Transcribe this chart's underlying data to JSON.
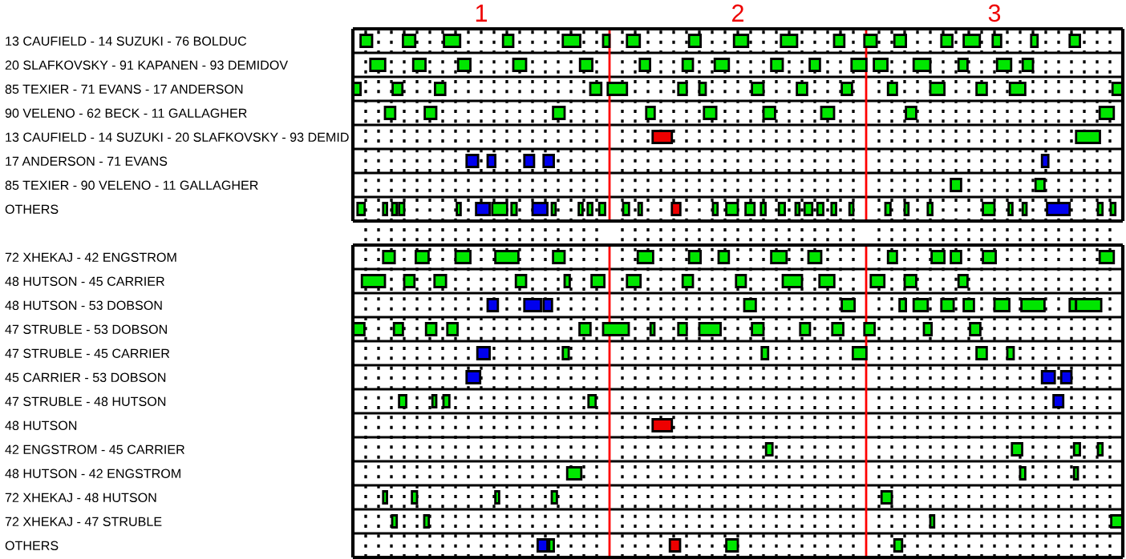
{
  "chart_data": {
    "type": "bar",
    "orientation": "horizontal",
    "grid": "x",
    "xlim": [
      0.5,
      3.5
    ],
    "xticks": [
      {
        "value": 0.55,
        "label": null
      },
      {
        "value": 0.6,
        "label": null
      },
      {
        "value": 0.65,
        "label": null
      },
      {
        "value": 0.7,
        "label": null
      },
      {
        "value": 0.75,
        "label": null
      },
      {
        "value": 0.8,
        "label": null
      },
      {
        "value": 0.85,
        "label": null
      },
      {
        "value": 0.9,
        "label": null
      },
      {
        "value": 0.95,
        "label": null
      },
      1,
      {
        "value": 1.05,
        "label": null
      },
      {
        "value": 1.1,
        "label": null
      },
      {
        "value": 1.15,
        "label": null
      },
      {
        "value": 1.2,
        "label": null
      },
      {
        "value": 1.25,
        "label": null
      },
      {
        "value": 1.3,
        "label": null
      },
      {
        "value": 1.35,
        "label": null
      },
      {
        "value": 1.4,
        "label": null
      },
      {
        "value": 1.45,
        "label": null
      },
      {
        "value": 1.55,
        "label": null
      },
      {
        "value": 1.6,
        "label": null
      },
      {
        "value": 1.65,
        "label": null
      },
      {
        "value": 1.7,
        "label": null
      },
      {
        "value": 1.75,
        "label": null
      },
      {
        "value": 1.8,
        "label": null
      },
      {
        "value": 1.85,
        "label": null
      },
      {
        "value": 1.9,
        "label": null
      },
      {
        "value": 1.95,
        "label": null
      },
      2,
      {
        "value": 2.05,
        "label": null
      },
      {
        "value": 2.1,
        "label": null
      },
      {
        "value": 2.15,
        "label": null
      },
      {
        "value": 2.2,
        "label": null
      },
      {
        "value": 2.25,
        "label": null
      },
      {
        "value": 2.3,
        "label": null
      },
      {
        "value": 2.35,
        "label": null
      },
      {
        "value": 2.4,
        "label": null
      },
      {
        "value": 2.45,
        "label": null
      },
      {
        "value": 2.55,
        "label": null
      },
      {
        "value": 2.6,
        "label": null
      },
      {
        "value": 2.65,
        "label": null
      },
      {
        "value": 2.7,
        "label": null
      },
      {
        "value": 2.75,
        "label": null
      },
      {
        "value": 2.8,
        "label": null
      },
      {
        "value": 2.85,
        "label": null
      },
      {
        "value": 2.9,
        "label": null
      },
      {
        "value": 2.95,
        "label": null
      },
      3,
      {
        "value": 3.05,
        "label": null
      },
      {
        "value": 3.1,
        "label": null
      },
      {
        "value": 3.15,
        "label": null
      },
      {
        "value": 3.2,
        "label": null
      },
      {
        "value": 3.25,
        "label": null
      },
      {
        "value": 3.3,
        "label": null
      },
      {
        "value": 3.35,
        "label": null
      },
      {
        "value": 3.4,
        "label": null
      },
      {
        "value": 3.45,
        "label": null
      }
    ],
    "ref_lines": [
      {
        "axis": "x",
        "value": 1.5,
        "color": "#ff0000"
      },
      {
        "axis": "x",
        "value": 2.5,
        "color": "#ff0000"
      }
    ],
    "categories": [
      "13 CAUFIELD - 14 SUZUKI - 76 BOLDUC",
      "20 SLAFKOVSKY - 91 KAPANEN - 93 DEMIDOV",
      "85 TEXIER - 71 EVANS - 17 ANDERSON",
      "90 VELENO - 62 BECK - 11 GALLAGHER",
      "13 CAUFIELD - 14 SUZUKI - 20 SLAFKOVSKY - 93 DEMID",
      "17 ANDERSON - 71 EVANS",
      "85 TEXIER - 90 VELENO - 11 GALLAGHER",
      "OTHERS",
      null,
      "72 XHEKAJ - 42 ENGSTROM",
      "48 HUTSON - 45 CARRIER",
      "48 HUTSON - 53 DOBSON",
      "47 STRUBLE - 53 DOBSON",
      "47 STRUBLE - 45 CARRIER",
      "45 CARRIER - 53 DOBSON",
      "47 STRUBLE - 48 HUTSON",
      "48 HUTSON",
      "42 ENGSTROM - 45 CARRIER",
      "48 HUTSON - 42 ENGSTROM",
      "72 XHEKAJ - 48 HUTSON",
      "72 XHEKAJ - 47 STRUBLE",
      "OTHERS"
    ],
    "series": [
      {
        "color": "#00e600",
        "base": [
          0.53,
          0.568,
          0.5,
          0.625,
          3.318,
          null,
          2.83,
          0.518,
          null,
          0.618,
          0.535,
          2.025,
          0.5,
          1.318,
          null,
          0.68,
          null,
          2.11,
          1.335,
          0.618,
          0.653,
          1.265
        ],
        "values": [
          0.045,
          0.058,
          0.03,
          0.04,
          0.093,
          null,
          0.04,
          0.028,
          null,
          0.045,
          0.09,
          0.045,
          0.045,
          0.023,
          null,
          0.028,
          null,
          0.025,
          0.055,
          0.015,
          0.018,
          0.018
        ]
      },
      {
        "color": "#00e600",
        "base": [
          0.695,
          0.735,
          0.655,
          0.78,
          null,
          null,
          3.16,
          0.618,
          null,
          0.745,
          0.7,
          2.405,
          0.66,
          2.093,
          null,
          0.81,
          null,
          3.068,
          3.1,
          0.73,
          0.778,
          1.955
        ],
        "values": [
          0.048,
          0.048,
          0.038,
          0.045,
          null,
          null,
          0.035,
          0.015,
          null,
          0.05,
          0.04,
          0.05,
          0.035,
          0.025,
          null,
          0.015,
          null,
          0.04,
          0.02,
          0.02,
          0.018,
          0.045
        ]
      },
      {
        "color": "#00e600",
        "base": [
          0.855,
          0.91,
          0.82,
          1.28,
          null,
          null,
          null,
          0.653,
          null,
          0.9,
          0.818,
          2.63,
          0.785,
          2.448,
          null,
          0.853,
          null,
          3.31,
          3.31,
          1.055,
          2.75,
          2.61
        ],
        "values": [
          0.063,
          0.048,
          0.04,
          0.045,
          null,
          null,
          null,
          0.018,
          null,
          0.058,
          0.045,
          0.025,
          0.04,
          0.053,
          null,
          0.023,
          null,
          0.023,
          0.015,
          0.015,
          0.015,
          0.03
        ]
      },
      {
        "color": "#00e600",
        "base": [
          1.085,
          1.125,
          1.425,
          1.643,
          null,
          null,
          null,
          0.68,
          null,
          1.055,
          1.135,
          2.685,
          0.868,
          2.93,
          null,
          1.418,
          null,
          3.403,
          null,
          1.275,
          3.455,
          null
        ],
        "values": [
          0.04,
          0.05,
          0.043,
          0.033,
          null,
          null,
          null,
          0.02,
          null,
          0.09,
          0.04,
          0.055,
          0.04,
          0.04,
          null,
          0.028,
          null,
          0.018,
          null,
          0.02,
          0.045,
          null
        ]
      },
      {
        "color": "#00e600",
        "base": [
          1.318,
          1.385,
          1.493,
          1.868,
          null,
          null,
          null,
          0.905,
          null,
          1.28,
          1.325,
          2.793,
          1.383,
          3.05,
          null,
          null,
          null,
          null,
          null,
          2.56,
          null,
          null
        ],
        "values": [
          0.068,
          0.048,
          0.075,
          0.048,
          null,
          null,
          null,
          0.015,
          null,
          0.045,
          0.02,
          0.048,
          0.043,
          0.025,
          null,
          null,
          null,
          null,
          null,
          0.04,
          null,
          null
        ]
      },
      {
        "color": "#00e600",
        "base": [
          1.475,
          1.618,
          1.768,
          2.1,
          null,
          null,
          null,
          1.043,
          null,
          1.61,
          1.43,
          2.88,
          1.475,
          null,
          null,
          null,
          null,
          null,
          null,
          null,
          null,
          null
        ],
        "values": [
          0.025,
          0.04,
          0.033,
          0.045,
          null,
          null,
          null,
          0.058,
          null,
          0.06,
          0.05,
          0.04,
          0.1,
          null,
          null,
          null,
          null,
          null,
          null,
          null,
          null,
          null
        ]
      },
      {
        "color": "#00e600",
        "base": [
          1.568,
          1.785,
          1.85,
          2.325,
          null,
          null,
          null,
          1.118,
          null,
          1.81,
          1.568,
          3.0,
          1.66,
          null,
          null,
          null,
          null,
          null,
          null,
          null,
          null,
          null
        ],
        "values": [
          0.05,
          0.04,
          0.025,
          0.05,
          null,
          null,
          null,
          0.02,
          null,
          0.045,
          0.053,
          0.058,
          0.015,
          null,
          null,
          null,
          null,
          null,
          null,
          null,
          null,
          null
        ]
      },
      {
        "color": "#00e600",
        "base": [
          1.81,
          1.91,
          2.055,
          2.655,
          null,
          null,
          null,
          1.275,
          null,
          1.925,
          1.785,
          3.105,
          1.768,
          null,
          null,
          null,
          null,
          null,
          null,
          null,
          null,
          null
        ],
        "values": [
          0.045,
          0.055,
          0.045,
          0.04,
          null,
          null,
          null,
          0.015,
          null,
          0.04,
          0.04,
          0.09,
          0.033,
          null,
          null,
          null,
          null,
          null,
          null,
          null,
          null,
          null
        ]
      },
      {
        "color": "#00e600",
        "base": [
          1.985,
          2.13,
          2.23,
          3.41,
          null,
          null,
          null,
          1.38,
          null,
          2.13,
          1.993,
          3.293,
          1.85,
          null,
          null,
          null,
          null,
          null,
          null,
          null,
          null,
          null
        ],
        "values": [
          0.055,
          0.045,
          0.04,
          0.055,
          null,
          null,
          null,
          0.015,
          null,
          0.06,
          0.038,
          0.025,
          0.083,
          null,
          null,
          null,
          null,
          null,
          null,
          null,
          null,
          null
        ]
      },
      {
        "color": "#00e600",
        "base": [
          2.168,
          2.28,
          2.405,
          null,
          null,
          null,
          null,
          1.415,
          null,
          2.275,
          2.175,
          3.318,
          2.055,
          null,
          null,
          null,
          null,
          null,
          null,
          null,
          null,
          null
        ],
        "values": [
          0.063,
          0.04,
          0.04,
          null,
          null,
          null,
          null,
          0.018,
          null,
          0.05,
          0.075,
          0.098,
          0.045,
          null,
          null,
          null,
          null,
          null,
          null,
          null,
          null,
          null
        ]
      },
      {
        "color": "#00e600",
        "base": [
          2.375,
          2.443,
          2.585,
          null,
          null,
          null,
          null,
          1.46,
          null,
          2.585,
          2.318,
          null,
          2.243,
          null,
          null,
          null,
          null,
          null,
          null,
          null,
          null,
          null
        ],
        "values": [
          0.04,
          0.058,
          0.035,
          null,
          null,
          null,
          null,
          0.023,
          null,
          0.035,
          0.058,
          null,
          0.038,
          null,
          null,
          null,
          null,
          null,
          null,
          null,
          null,
          null
        ]
      },
      {
        "color": "#00e600",
        "base": [
          2.493,
          2.53,
          2.75,
          null,
          null,
          null,
          null,
          1.553,
          null,
          2.755,
          2.518,
          null,
          2.368,
          null,
          null,
          null,
          null,
          null,
          null,
          null,
          null,
          null
        ],
        "values": [
          0.048,
          0.053,
          0.055,
          null,
          null,
          null,
          null,
          0.023,
          null,
          0.05,
          0.053,
          null,
          0.043,
          null,
          null,
          null,
          null,
          null,
          null,
          null,
          null,
          null
        ]
      },
      {
        "color": "#00e600",
        "base": [
          2.61,
          2.685,
          2.93,
          null,
          null,
          null,
          null,
          1.613,
          null,
          2.83,
          2.65,
          null,
          2.493,
          null,
          null,
          null,
          null,
          null,
          null,
          null,
          null,
          null
        ],
        "values": [
          0.045,
          0.065,
          0.04,
          null,
          null,
          null,
          null,
          0.013,
          null,
          0.04,
          0.045,
          null,
          0.04,
          null,
          null,
          null,
          null,
          null,
          null,
          null,
          null,
          null
        ]
      },
      {
        "color": "#00e600",
        "base": [
          2.793,
          2.86,
          3.06,
          null,
          null,
          null,
          null,
          1.903,
          null,
          2.955,
          2.86,
          null,
          2.725,
          null,
          null,
          null,
          null,
          null,
          null,
          null,
          null,
          null
        ],
        "values": [
          0.043,
          0.035,
          0.06,
          null,
          null,
          null,
          null,
          0.018,
          null,
          0.05,
          0.035,
          null,
          0.03,
          null,
          null,
          null,
          null,
          null,
          null,
          null,
          null,
          null
        ]
      },
      {
        "color": "#00e600",
        "base": [
          2.88,
          3.01,
          3.46,
          null,
          null,
          null,
          null,
          1.955,
          null,
          3.41,
          null,
          null,
          2.905,
          null,
          null,
          null,
          null,
          null,
          null,
          null,
          null,
          null
        ],
        "values": [
          0.063,
          0.055,
          0.04,
          null,
          null,
          null,
          null,
          0.045,
          null,
          0.055,
          null,
          null,
          0.04,
          null,
          null,
          null,
          null,
          null,
          null,
          null,
          null,
          null
        ]
      },
      {
        "color": "#00e600",
        "base": [
          2.993,
          3.11,
          null,
          null,
          null,
          null,
          null,
          2.03,
          null,
          null,
          null,
          null,
          null,
          null,
          null,
          null,
          null,
          null,
          null,
          null,
          null,
          null
        ],
        "values": [
          0.033,
          0.04,
          null,
          null,
          null,
          null,
          null,
          0.035,
          null,
          null,
          null,
          null,
          null,
          null,
          null,
          null,
          null,
          null,
          null,
          null,
          null,
          null
        ]
      },
      {
        "color": "#00e600",
        "base": [
          3.143,
          null,
          null,
          null,
          null,
          null,
          null,
          2.09,
          null,
          null,
          null,
          null,
          null,
          null,
          null,
          null,
          null,
          null,
          null,
          null,
          null,
          null
        ],
        "values": [
          0.025,
          null,
          null,
          null,
          null,
          null,
          null,
          0.018,
          null,
          null,
          null,
          null,
          null,
          null,
          null,
          null,
          null,
          null,
          null,
          null,
          null,
          null
        ]
      },
      {
        "color": "#00e600",
        "base": [
          3.293,
          null,
          null,
          null,
          null,
          null,
          null,
          2.16,
          null,
          null,
          null,
          null,
          null,
          null,
          null,
          null,
          null,
          null,
          null,
          null,
          null,
          null
        ],
        "values": [
          0.04,
          null,
          null,
          null,
          null,
          null,
          null,
          0.023,
          null,
          null,
          null,
          null,
          null,
          null,
          null,
          null,
          null,
          null,
          null,
          null,
          null,
          null
        ]
      },
      {
        "color": "#00e600",
        "base": [
          null,
          null,
          null,
          null,
          null,
          null,
          null,
          2.225,
          null,
          null,
          null,
          null,
          null,
          null,
          null,
          null,
          null,
          null,
          null,
          null,
          null,
          null
        ],
        "values": [
          null,
          null,
          null,
          null,
          null,
          null,
          null,
          0.015,
          null,
          null,
          null,
          null,
          null,
          null,
          null,
          null,
          null,
          null,
          null,
          null,
          null,
          null
        ]
      },
      {
        "color": "#00e600",
        "base": [
          null,
          null,
          null,
          null,
          null,
          null,
          null,
          2.26,
          null,
          null,
          null,
          null,
          null,
          null,
          null,
          null,
          null,
          null,
          null,
          null,
          null,
          null
        ],
        "values": [
          null,
          null,
          null,
          null,
          null,
          null,
          null,
          0.03,
          null,
          null,
          null,
          null,
          null,
          null,
          null,
          null,
          null,
          null,
          null,
          null,
          null,
          null
        ]
      },
      {
        "color": "#00e600",
        "base": [
          null,
          null,
          null,
          null,
          null,
          null,
          null,
          2.31,
          null,
          null,
          null,
          null,
          null,
          null,
          null,
          null,
          null,
          null,
          null,
          null,
          null,
          null
        ],
        "values": [
          null,
          null,
          null,
          null,
          null,
          null,
          null,
          0.023,
          null,
          null,
          null,
          null,
          null,
          null,
          null,
          null,
          null,
          null,
          null,
          null,
          null,
          null
        ]
      },
      {
        "color": "#00e600",
        "base": [
          null,
          null,
          null,
          null,
          null,
          null,
          null,
          2.365,
          null,
          null,
          null,
          null,
          null,
          null,
          null,
          null,
          null,
          null,
          null,
          null,
          null,
          null
        ],
        "values": [
          null,
          null,
          null,
          null,
          null,
          null,
          null,
          0.018,
          null,
          null,
          null,
          null,
          null,
          null,
          null,
          null,
          null,
          null,
          null,
          null,
          null,
          null
        ]
      },
      {
        "color": "#00e600",
        "base": [
          null,
          null,
          null,
          null,
          null,
          null,
          null,
          2.435,
          null,
          null,
          null,
          null,
          null,
          null,
          null,
          null,
          null,
          null,
          null,
          null,
          null,
          null
        ],
        "values": [
          null,
          null,
          null,
          null,
          null,
          null,
          null,
          0.015,
          null,
          null,
          null,
          null,
          null,
          null,
          null,
          null,
          null,
          null,
          null,
          null,
          null,
          null
        ]
      },
      {
        "color": "#00e600",
        "base": [
          null,
          null,
          null,
          null,
          null,
          null,
          null,
          2.575,
          null,
          null,
          null,
          null,
          null,
          null,
          null,
          null,
          null,
          null,
          null,
          null,
          null,
          null
        ],
        "values": [
          null,
          null,
          null,
          null,
          null,
          null,
          null,
          0.02,
          null,
          null,
          null,
          null,
          null,
          null,
          null,
          null,
          null,
          null,
          null,
          null,
          null,
          null
        ]
      },
      {
        "color": "#00e600",
        "base": [
          null,
          null,
          null,
          null,
          null,
          null,
          null,
          2.65,
          null,
          null,
          null,
          null,
          null,
          null,
          null,
          null,
          null,
          null,
          null,
          null,
          null,
          null
        ],
        "values": [
          null,
          null,
          null,
          null,
          null,
          null,
          null,
          0.015,
          null,
          null,
          null,
          null,
          null,
          null,
          null,
          null,
          null,
          null,
          null,
          null,
          null,
          null
        ]
      },
      {
        "color": "#00e600",
        "base": [
          null,
          null,
          null,
          null,
          null,
          null,
          null,
          2.74,
          null,
          null,
          null,
          null,
          null,
          null,
          null,
          null,
          null,
          null,
          null,
          null,
          null,
          null
        ],
        "values": [
          null,
          null,
          null,
          null,
          null,
          null,
          null,
          0.018,
          null,
          null,
          null,
          null,
          null,
          null,
          null,
          null,
          null,
          null,
          null,
          null,
          null,
          null
        ]
      },
      {
        "color": "#00e600",
        "base": [
          null,
          null,
          null,
          null,
          null,
          null,
          null,
          2.955,
          null,
          null,
          null,
          null,
          null,
          null,
          null,
          null,
          null,
          null,
          null,
          null,
          null,
          null
        ],
        "values": [
          null,
          null,
          null,
          null,
          null,
          null,
          null,
          0.045,
          null,
          null,
          null,
          null,
          null,
          null,
          null,
          null,
          null,
          null,
          null,
          null,
          null,
          null
        ]
      },
      {
        "color": "#00e600",
        "base": [
          null,
          null,
          null,
          null,
          null,
          null,
          null,
          3.055,
          null,
          null,
          null,
          null,
          null,
          null,
          null,
          null,
          null,
          null,
          null,
          null,
          null,
          null
        ],
        "values": [
          null,
          null,
          null,
          null,
          null,
          null,
          null,
          0.015,
          null,
          null,
          null,
          null,
          null,
          null,
          null,
          null,
          null,
          null,
          null,
          null,
          null,
          null
        ]
      },
      {
        "color": "#00e600",
        "base": [
          null,
          null,
          null,
          null,
          null,
          null,
          null,
          3.11,
          null,
          null,
          null,
          null,
          null,
          null,
          null,
          null,
          null,
          null,
          null,
          null,
          null,
          null
        ],
        "values": [
          null,
          null,
          null,
          null,
          null,
          null,
          null,
          0.015,
          null,
          null,
          null,
          null,
          null,
          null,
          null,
          null,
          null,
          null,
          null,
          null,
          null,
          null
        ]
      },
      {
        "color": "#00e600",
        "base": [
          null,
          null,
          null,
          null,
          null,
          null,
          null,
          3.403,
          null,
          null,
          null,
          null,
          null,
          null,
          null,
          null,
          null,
          null,
          null,
          null,
          null,
          null
        ],
        "values": [
          null,
          null,
          null,
          null,
          null,
          null,
          null,
          0.018,
          null,
          null,
          null,
          null,
          null,
          null,
          null,
          null,
          null,
          null,
          null,
          null,
          null,
          null
        ]
      },
      {
        "color": "#00e600",
        "base": [
          null,
          null,
          null,
          null,
          null,
          null,
          null,
          3.453,
          null,
          null,
          null,
          null,
          null,
          null,
          null,
          null,
          null,
          null,
          null,
          null,
          null,
          null
        ],
        "values": [
          null,
          null,
          null,
          null,
          null,
          null,
          null,
          0.018,
          null,
          null,
          null,
          null,
          null,
          null,
          null,
          null,
          null,
          null,
          null,
          null,
          null,
          null
        ]
      },
      {
        "color": "#0000ee",
        "base": [
          null,
          null,
          null,
          null,
          null,
          0.943,
          null,
          0.98,
          null,
          null,
          null,
          1.025,
          null,
          0.985,
          0.943,
          3.23,
          null,
          null,
          null,
          null,
          null,
          1.22
        ],
        "values": [
          null,
          null,
          null,
          null,
          null,
          0.045,
          null,
          0.053,
          null,
          null,
          null,
          0.04,
          null,
          0.048,
          0.053,
          0.038,
          null,
          null,
          null,
          null,
          null,
          0.038
        ]
      },
      {
        "color": "#0000ee",
        "base": [
          null,
          null,
          null,
          null,
          null,
          1.025,
          null,
          1.2,
          null,
          null,
          null,
          1.168,
          null,
          null,
          3.185,
          null,
          null,
          null,
          null,
          null,
          null,
          null
        ],
        "values": [
          null,
          null,
          null,
          null,
          null,
          0.03,
          null,
          0.058,
          null,
          null,
          null,
          0.065,
          null,
          null,
          0.05,
          null,
          null,
          null,
          null,
          null,
          null,
          null
        ]
      },
      {
        "color": "#0000ee",
        "base": [
          null,
          null,
          null,
          null,
          null,
          1.168,
          null,
          3.205,
          null,
          null,
          null,
          1.243,
          null,
          null,
          3.26,
          null,
          null,
          null,
          null,
          null,
          null,
          null
        ],
        "values": [
          null,
          null,
          null,
          null,
          null,
          0.038,
          null,
          0.088,
          null,
          null,
          null,
          0.033,
          null,
          null,
          0.04,
          null,
          null,
          null,
          null,
          null,
          null,
          null
        ]
      },
      {
        "color": "#0000ee",
        "base": [
          null,
          null,
          null,
          null,
          null,
          1.243,
          null,
          null,
          null,
          null,
          null,
          null,
          null,
          null,
          null,
          null,
          null,
          null,
          null,
          null,
          null,
          null
        ],
        "values": [
          null,
          null,
          null,
          null,
          null,
          0.04,
          null,
          null,
          null,
          null,
          null,
          null,
          null,
          null,
          null,
          null,
          null,
          null,
          null,
          null,
          null,
          null
        ]
      },
      {
        "color": "#0000ee",
        "base": [
          null,
          null,
          null,
          null,
          null,
          3.185,
          null,
          null,
          null,
          null,
          null,
          null,
          null,
          null,
          null,
          null,
          null,
          null,
          null,
          null,
          null,
          null
        ],
        "values": [
          null,
          null,
          null,
          null,
          null,
          0.025,
          null,
          null,
          null,
          null,
          null,
          null,
          null,
          null,
          null,
          null,
          null,
          null,
          null,
          null,
          null,
          null
        ]
      },
      {
        "color": "#ee0000",
        "base": [
          null,
          null,
          null,
          null,
          1.668,
          null,
          null,
          1.743,
          null,
          null,
          null,
          null,
          null,
          null,
          null,
          null,
          1.668,
          null,
          null,
          null,
          null,
          1.735
        ],
        "values": [
          null,
          null,
          null,
          null,
          0.075,
          null,
          null,
          0.033,
          null,
          null,
          null,
          null,
          null,
          null,
          null,
          null,
          0.075,
          null,
          null,
          null,
          null,
          0.04
        ]
      }
    ]
  }
}
